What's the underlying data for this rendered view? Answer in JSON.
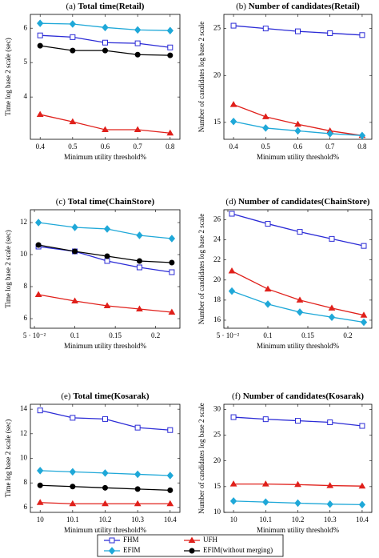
{
  "chart_data": [
    {
      "type": "line",
      "label": "(a)",
      "title": "Total time(Retail)",
      "x_label": "Minimum utility threshold%",
      "y_label": "Time log base 2 scale (sec)",
      "x": [
        0.4,
        0.5,
        0.6,
        0.7,
        0.8
      ],
      "xlim": [
        0.37,
        0.83
      ],
      "xticks": [
        0.4,
        0.5,
        0.6,
        0.7,
        0.8
      ],
      "ylim": [
        2.77,
        6.4
      ],
      "yticks": [
        4,
        5,
        6
      ],
      "series": [
        {
          "name": "FHM",
          "color": "#2b2bd6",
          "marker": "square",
          "values": [
            5.79,
            5.74,
            5.58,
            5.56,
            5.44
          ]
        },
        {
          "name": "UFH",
          "color": "#e0201b",
          "marker": "triangle",
          "values": [
            3.49,
            3.28,
            3.05,
            3.05,
            2.95
          ]
        },
        {
          "name": "EFIM",
          "color": "#1fa8d8",
          "marker": "diamond",
          "values": [
            6.14,
            6.12,
            6.02,
            5.95,
            5.93
          ]
        },
        {
          "name": "EFIM(without merging)",
          "color": "#000000",
          "marker": "circle",
          "values": [
            5.49,
            5.35,
            5.35,
            5.23,
            5.21
          ]
        }
      ]
    },
    {
      "type": "line",
      "label": "(b)",
      "title": "Number of candidates(Retail)",
      "x_label": "Minimum utility threshold%",
      "y_label": "Number of candidates log base 2 scale",
      "x": [
        0.4,
        0.5,
        0.6,
        0.7,
        0.8
      ],
      "xlim": [
        0.37,
        0.83
      ],
      "xticks": [
        0.4,
        0.5,
        0.6,
        0.7,
        0.8
      ],
      "ylim": [
        13.2,
        26.5
      ],
      "yticks": [
        15,
        20,
        25
      ],
      "series": [
        {
          "name": "FHM",
          "color": "#2b2bd6",
          "marker": "square",
          "values": [
            25.3,
            25.0,
            24.7,
            24.5,
            24.3
          ]
        },
        {
          "name": "UFH",
          "color": "#e0201b",
          "marker": "triangle",
          "values": [
            16.9,
            15.6,
            14.8,
            14.1,
            13.6
          ]
        },
        {
          "name": "EFIM",
          "color": "#1fa8d8",
          "marker": "diamond",
          "values": [
            15.1,
            14.4,
            14.1,
            13.8,
            13.6
          ]
        }
      ]
    },
    {
      "type": "line",
      "label": "(c)",
      "title": "Total time(ChainStore)",
      "x_label": "Minimum utility threshold%",
      "y_label": "Time log base 2 scale (sec)",
      "x": [
        0.055,
        0.1,
        0.14,
        0.18,
        0.22
      ],
      "xlim": [
        0.045,
        0.23
      ],
      "xticks": [
        {
          "value": 0.05,
          "label": "5 · 10⁻²"
        },
        0.1,
        0.15,
        0.2
      ],
      "ylim": [
        5.4,
        12.8
      ],
      "yticks": [
        6,
        8,
        10,
        12
      ],
      "series": [
        {
          "name": "FHM",
          "color": "#2b2bd6",
          "marker": "square",
          "values": [
            10.5,
            10.2,
            9.6,
            9.2,
            8.9
          ]
        },
        {
          "name": "UFH",
          "color": "#e0201b",
          "marker": "triangle",
          "values": [
            7.5,
            7.1,
            6.8,
            6.6,
            6.4
          ]
        },
        {
          "name": "EFIM",
          "color": "#1fa8d8",
          "marker": "diamond",
          "values": [
            12.0,
            11.7,
            11.6,
            11.2,
            11.0
          ]
        },
        {
          "name": "EFIM(without merging)",
          "color": "#000000",
          "marker": "circle",
          "values": [
            10.6,
            10.2,
            9.9,
            9.6,
            9.5
          ]
        }
      ]
    },
    {
      "type": "line",
      "label": "(d)",
      "title": "Number of candidates(ChainStore)",
      "x_label": "Minimum utility threshold%",
      "y_label": "Number of candidates log base 2 scale",
      "x": [
        0.055,
        0.1,
        0.14,
        0.18,
        0.22
      ],
      "xlim": [
        0.045,
        0.23
      ],
      "xticks": [
        {
          "value": 0.05,
          "label": "5 · 10⁻²"
        },
        0.1,
        0.15,
        0.2
      ],
      "ylim": [
        15.2,
        27
      ],
      "yticks": [
        16,
        18,
        20,
        22,
        24,
        26
      ],
      "series": [
        {
          "name": "FHM",
          "color": "#2b2bd6",
          "marker": "square",
          "values": [
            26.6,
            25.6,
            24.8,
            24.1,
            23.4
          ]
        },
        {
          "name": "UFH",
          "color": "#e0201b",
          "marker": "triangle",
          "values": [
            20.9,
            19.1,
            18.0,
            17.2,
            16.5
          ]
        },
        {
          "name": "EFIM",
          "color": "#1fa8d8",
          "marker": "diamond",
          "values": [
            18.9,
            17.6,
            16.8,
            16.3,
            15.8
          ]
        }
      ]
    },
    {
      "type": "line",
      "label": "(e)",
      "title": "Total time(Kosarak)",
      "x_label": "Minimum utility threshold%",
      "y_label": "Time log base 2 scale (sec)",
      "x": [
        10,
        10.1,
        10.2,
        10.3,
        10.4
      ],
      "xlim": [
        9.97,
        10.43
      ],
      "xticks": [
        10,
        10.1,
        10.2,
        10.3,
        10.4
      ],
      "ylim": [
        5.6,
        14.4
      ],
      "yticks": [
        6,
        8,
        10,
        12,
        14
      ],
      "series": [
        {
          "name": "FHM",
          "color": "#2b2bd6",
          "marker": "square",
          "values": [
            13.9,
            13.3,
            13.2,
            12.5,
            12.3
          ]
        },
        {
          "name": "UFH",
          "color": "#e0201b",
          "marker": "triangle",
          "values": [
            6.4,
            6.3,
            6.3,
            6.3,
            6.3
          ]
        },
        {
          "name": "EFIM",
          "color": "#1fa8d8",
          "marker": "diamond",
          "values": [
            9.0,
            8.9,
            8.8,
            8.7,
            8.6
          ]
        },
        {
          "name": "EFIM(without merging)",
          "color": "#000000",
          "marker": "circle",
          "values": [
            7.8,
            7.7,
            7.6,
            7.5,
            7.4
          ]
        }
      ]
    },
    {
      "type": "line",
      "label": "(f)",
      "title": "Number of candidates(Kosarak)",
      "x_label": "Minimum utility threshold%",
      "y_label": "Number of candidates log base 2 scale",
      "x": [
        10,
        10.1,
        10.2,
        10.3,
        10.4
      ],
      "xlim": [
        9.97,
        10.43
      ],
      "xticks": [
        10,
        10.1,
        10.2,
        10.3,
        10.4
      ],
      "ylim": [
        10,
        31
      ],
      "yticks": [
        10,
        15,
        20,
        25,
        30
      ],
      "series": [
        {
          "name": "FHM",
          "color": "#2b2bd6",
          "marker": "square",
          "values": [
            28.5,
            28.1,
            27.8,
            27.5,
            26.8
          ]
        },
        {
          "name": "UFH",
          "color": "#e0201b",
          "marker": "triangle",
          "values": [
            15.5,
            15.5,
            15.4,
            15.2,
            15.1
          ]
        },
        {
          "name": "EFIM",
          "color": "#1fa8d8",
          "marker": "diamond",
          "values": [
            12.2,
            12.0,
            11.8,
            11.6,
            11.5
          ]
        }
      ]
    }
  ]
}
